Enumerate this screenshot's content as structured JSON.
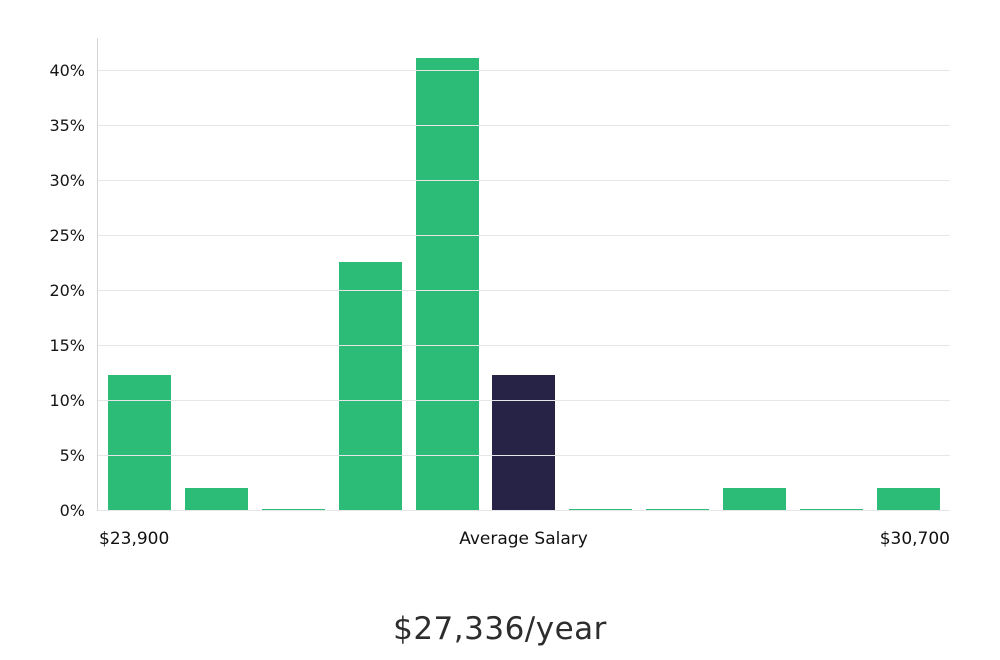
{
  "chart_data": {
    "type": "bar",
    "title": "$27,336/year",
    "x_axis_labels": {
      "left": "$23,900",
      "center": "Average Salary",
      "right": "$30,700"
    },
    "values": [
      12.4,
      2.1,
      0.15,
      22.6,
      41.2,
      12.4,
      0.15,
      0.15,
      2.1,
      0.15,
      2.1
    ],
    "highlight_index": 5,
    "highlight_meaning": "Average Salary bin",
    "ylim": [
      0,
      43
    ],
    "y_ticks": [
      0,
      5,
      10,
      15,
      20,
      25,
      30,
      35,
      40
    ],
    "y_tick_suffix": "%",
    "grid": true,
    "legend": null,
    "colors": {
      "bar_green": "#2dbc78",
      "bar_highlight": "#272347",
      "gridline": "#e6e6e6",
      "axis_line": "#d4d4d4",
      "text": "#151515",
      "title_text": "#2d2d2d"
    }
  }
}
